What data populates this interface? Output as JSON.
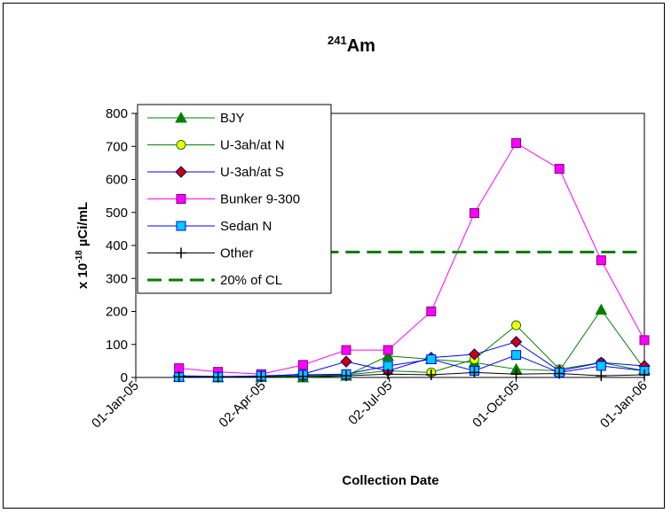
{
  "chart_data": {
    "type": "line",
    "title_sup": "241",
    "title_main": "Am",
    "ylabel_pre": "x 10",
    "ylabel_exp": "-18",
    "ylabel_post": " µCi/mL",
    "xlabel": "Collection Date",
    "ylim": [
      0,
      800
    ],
    "yticks": [
      0,
      100,
      200,
      300,
      400,
      500,
      600,
      700,
      800
    ],
    "xlim": [
      "2005-01-01",
      "2006-01-01"
    ],
    "xticks": [
      {
        "date": "2005-01-01",
        "label": "01-Jan-05"
      },
      {
        "date": "2005-04-02",
        "label": "02-Apr-05"
      },
      {
        "date": "2005-07-02",
        "label": "02-Jul-05"
      },
      {
        "date": "2005-10-01",
        "label": "01-Oct-05"
      },
      {
        "date": "2006-01-01",
        "label": "01-Jan-06"
      }
    ],
    "grid": false,
    "legend_position": "top-left",
    "series": [
      {
        "name": "BJY",
        "color": "#008000",
        "marker": "triangle",
        "marker_fill": "#008000",
        "points": [
          [
            "2005-02-01",
            2
          ],
          [
            "2005-03-01",
            0
          ],
          [
            "2005-04-01",
            1
          ],
          [
            "2005-05-01",
            0
          ],
          [
            "2005-06-01",
            5
          ],
          [
            "2005-07-01",
            65
          ],
          [
            "2005-08-01",
            55
          ],
          [
            "2005-09-01",
            45
          ],
          [
            "2005-10-01",
            25
          ],
          [
            "2005-11-01",
            20
          ],
          [
            "2005-12-01",
            205
          ],
          [
            "2006-01-01",
            25
          ]
        ]
      },
      {
        "name": "U-3ah/at N",
        "color": "#008000",
        "marker": "circle",
        "marker_fill": "#ffff00",
        "points": [
          [
            "2005-02-01",
            3
          ],
          [
            "2005-03-01",
            2
          ],
          [
            "2005-04-01",
            2
          ],
          [
            "2005-05-01",
            5
          ],
          [
            "2005-06-01",
            8
          ],
          [
            "2005-07-01",
            20
          ],
          [
            "2005-08-01",
            15
          ],
          [
            "2005-09-01",
            55
          ],
          [
            "2005-10-01",
            158
          ],
          [
            "2005-11-01",
            25
          ],
          [
            "2005-12-01",
            45
          ],
          [
            "2006-01-01",
            20
          ]
        ]
      },
      {
        "name": "U-3ah/at S",
        "color": "#0000ff",
        "marker": "diamond",
        "marker_fill": "#cc0000",
        "points": [
          [
            "2005-02-01",
            5
          ],
          [
            "2005-03-01",
            3
          ],
          [
            "2005-04-01",
            3
          ],
          [
            "2005-05-01",
            10
          ],
          [
            "2005-06-01",
            48
          ],
          [
            "2005-07-01",
            20
          ],
          [
            "2005-08-01",
            60
          ],
          [
            "2005-09-01",
            70
          ],
          [
            "2005-10-01",
            108
          ],
          [
            "2005-11-01",
            20
          ],
          [
            "2005-12-01",
            45
          ],
          [
            "2006-01-01",
            35
          ]
        ]
      },
      {
        "name": "Bunker 9-300",
        "color": "#ff00ff",
        "marker": "square",
        "marker_fill": "#ff00ff",
        "points": [
          [
            "2005-02-01",
            28
          ],
          [
            "2005-03-01",
            17
          ],
          [
            "2005-04-01",
            10
          ],
          [
            "2005-05-01",
            38
          ],
          [
            "2005-06-01",
            83
          ],
          [
            "2005-07-01",
            83
          ],
          [
            "2005-08-01",
            200
          ],
          [
            "2005-09-01",
            498
          ],
          [
            "2005-10-01",
            710
          ],
          [
            "2005-11-01",
            632
          ],
          [
            "2005-12-01",
            355
          ],
          [
            "2006-01-01",
            113
          ]
        ]
      },
      {
        "name": "Sedan N",
        "color": "#0000ff",
        "marker": "square",
        "marker_fill": "#00ccff",
        "points": [
          [
            "2005-02-01",
            1
          ],
          [
            "2005-03-01",
            2
          ],
          [
            "2005-04-01",
            5
          ],
          [
            "2005-05-01",
            8
          ],
          [
            "2005-06-01",
            10
          ],
          [
            "2005-07-01",
            35
          ],
          [
            "2005-08-01",
            55
          ],
          [
            "2005-09-01",
            20
          ],
          [
            "2005-10-01",
            68
          ],
          [
            "2005-11-01",
            15
          ],
          [
            "2005-12-01",
            35
          ],
          [
            "2006-01-01",
            20
          ]
        ]
      },
      {
        "name": "Other",
        "color": "#000000",
        "marker": "plus",
        "marker_fill": "#000000",
        "points": [
          [
            "2005-02-01",
            2
          ],
          [
            "2005-03-01",
            1
          ],
          [
            "2005-04-01",
            2
          ],
          [
            "2005-05-01",
            3
          ],
          [
            "2005-06-01",
            5
          ],
          [
            "2005-07-01",
            10
          ],
          [
            "2005-08-01",
            8
          ],
          [
            "2005-09-01",
            15
          ],
          [
            "2005-10-01",
            10
          ],
          [
            "2005-11-01",
            12
          ],
          [
            "2005-12-01",
            5
          ],
          [
            "2006-01-01",
            8
          ]
        ]
      },
      {
        "name": "20% of CL",
        "color": "#008000",
        "marker": "none",
        "dashed": true,
        "points": [
          [
            "2005-05-01",
            380
          ],
          [
            "2006-01-01",
            380
          ]
        ]
      }
    ]
  }
}
